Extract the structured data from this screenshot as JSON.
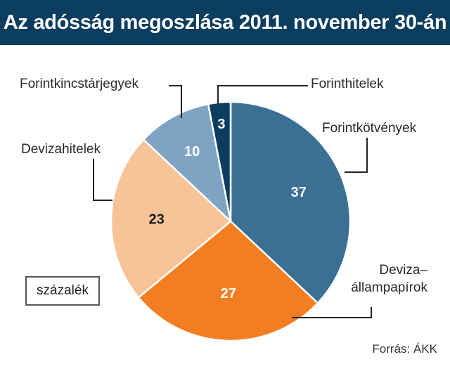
{
  "title": "Az adósság megoszlása 2011. november 30-án",
  "unit": "százalék",
  "source": "Forrás: ÁKK",
  "chart_data": {
    "type": "pie",
    "title": "Az adósság megoszlása 2011. november 30-án",
    "unit": "százalék",
    "slices": [
      {
        "label": "Forintkötvények",
        "value": 37,
        "color": "#3b7095",
        "value_color": "#ffffff"
      },
      {
        "label": "Deviza–állampapírok",
        "value": 27,
        "color": "#f37e21",
        "value_color": "#ffffff"
      },
      {
        "label": "Devizahitelek",
        "value": 23,
        "color": "#f9c398",
        "value_color": "#1a1a1a"
      },
      {
        "label": "Forintkincstárjegyek",
        "value": 10,
        "color": "#7fa4c3",
        "value_color": "#ffffff"
      },
      {
        "label": "Forinthitelek",
        "value": 3,
        "color": "#0b3d5e",
        "value_color": "#ffffff"
      }
    ],
    "label_lines": [
      [
        "Forintkötvények"
      ],
      [
        "Deviza–",
        "állampapírok"
      ],
      [
        "Devizahitelek"
      ],
      [
        "Forintkincstárjegyek"
      ],
      [
        "Forinthitelek"
      ]
    ],
    "start": "12 o'clock",
    "direction": "clockwise"
  }
}
